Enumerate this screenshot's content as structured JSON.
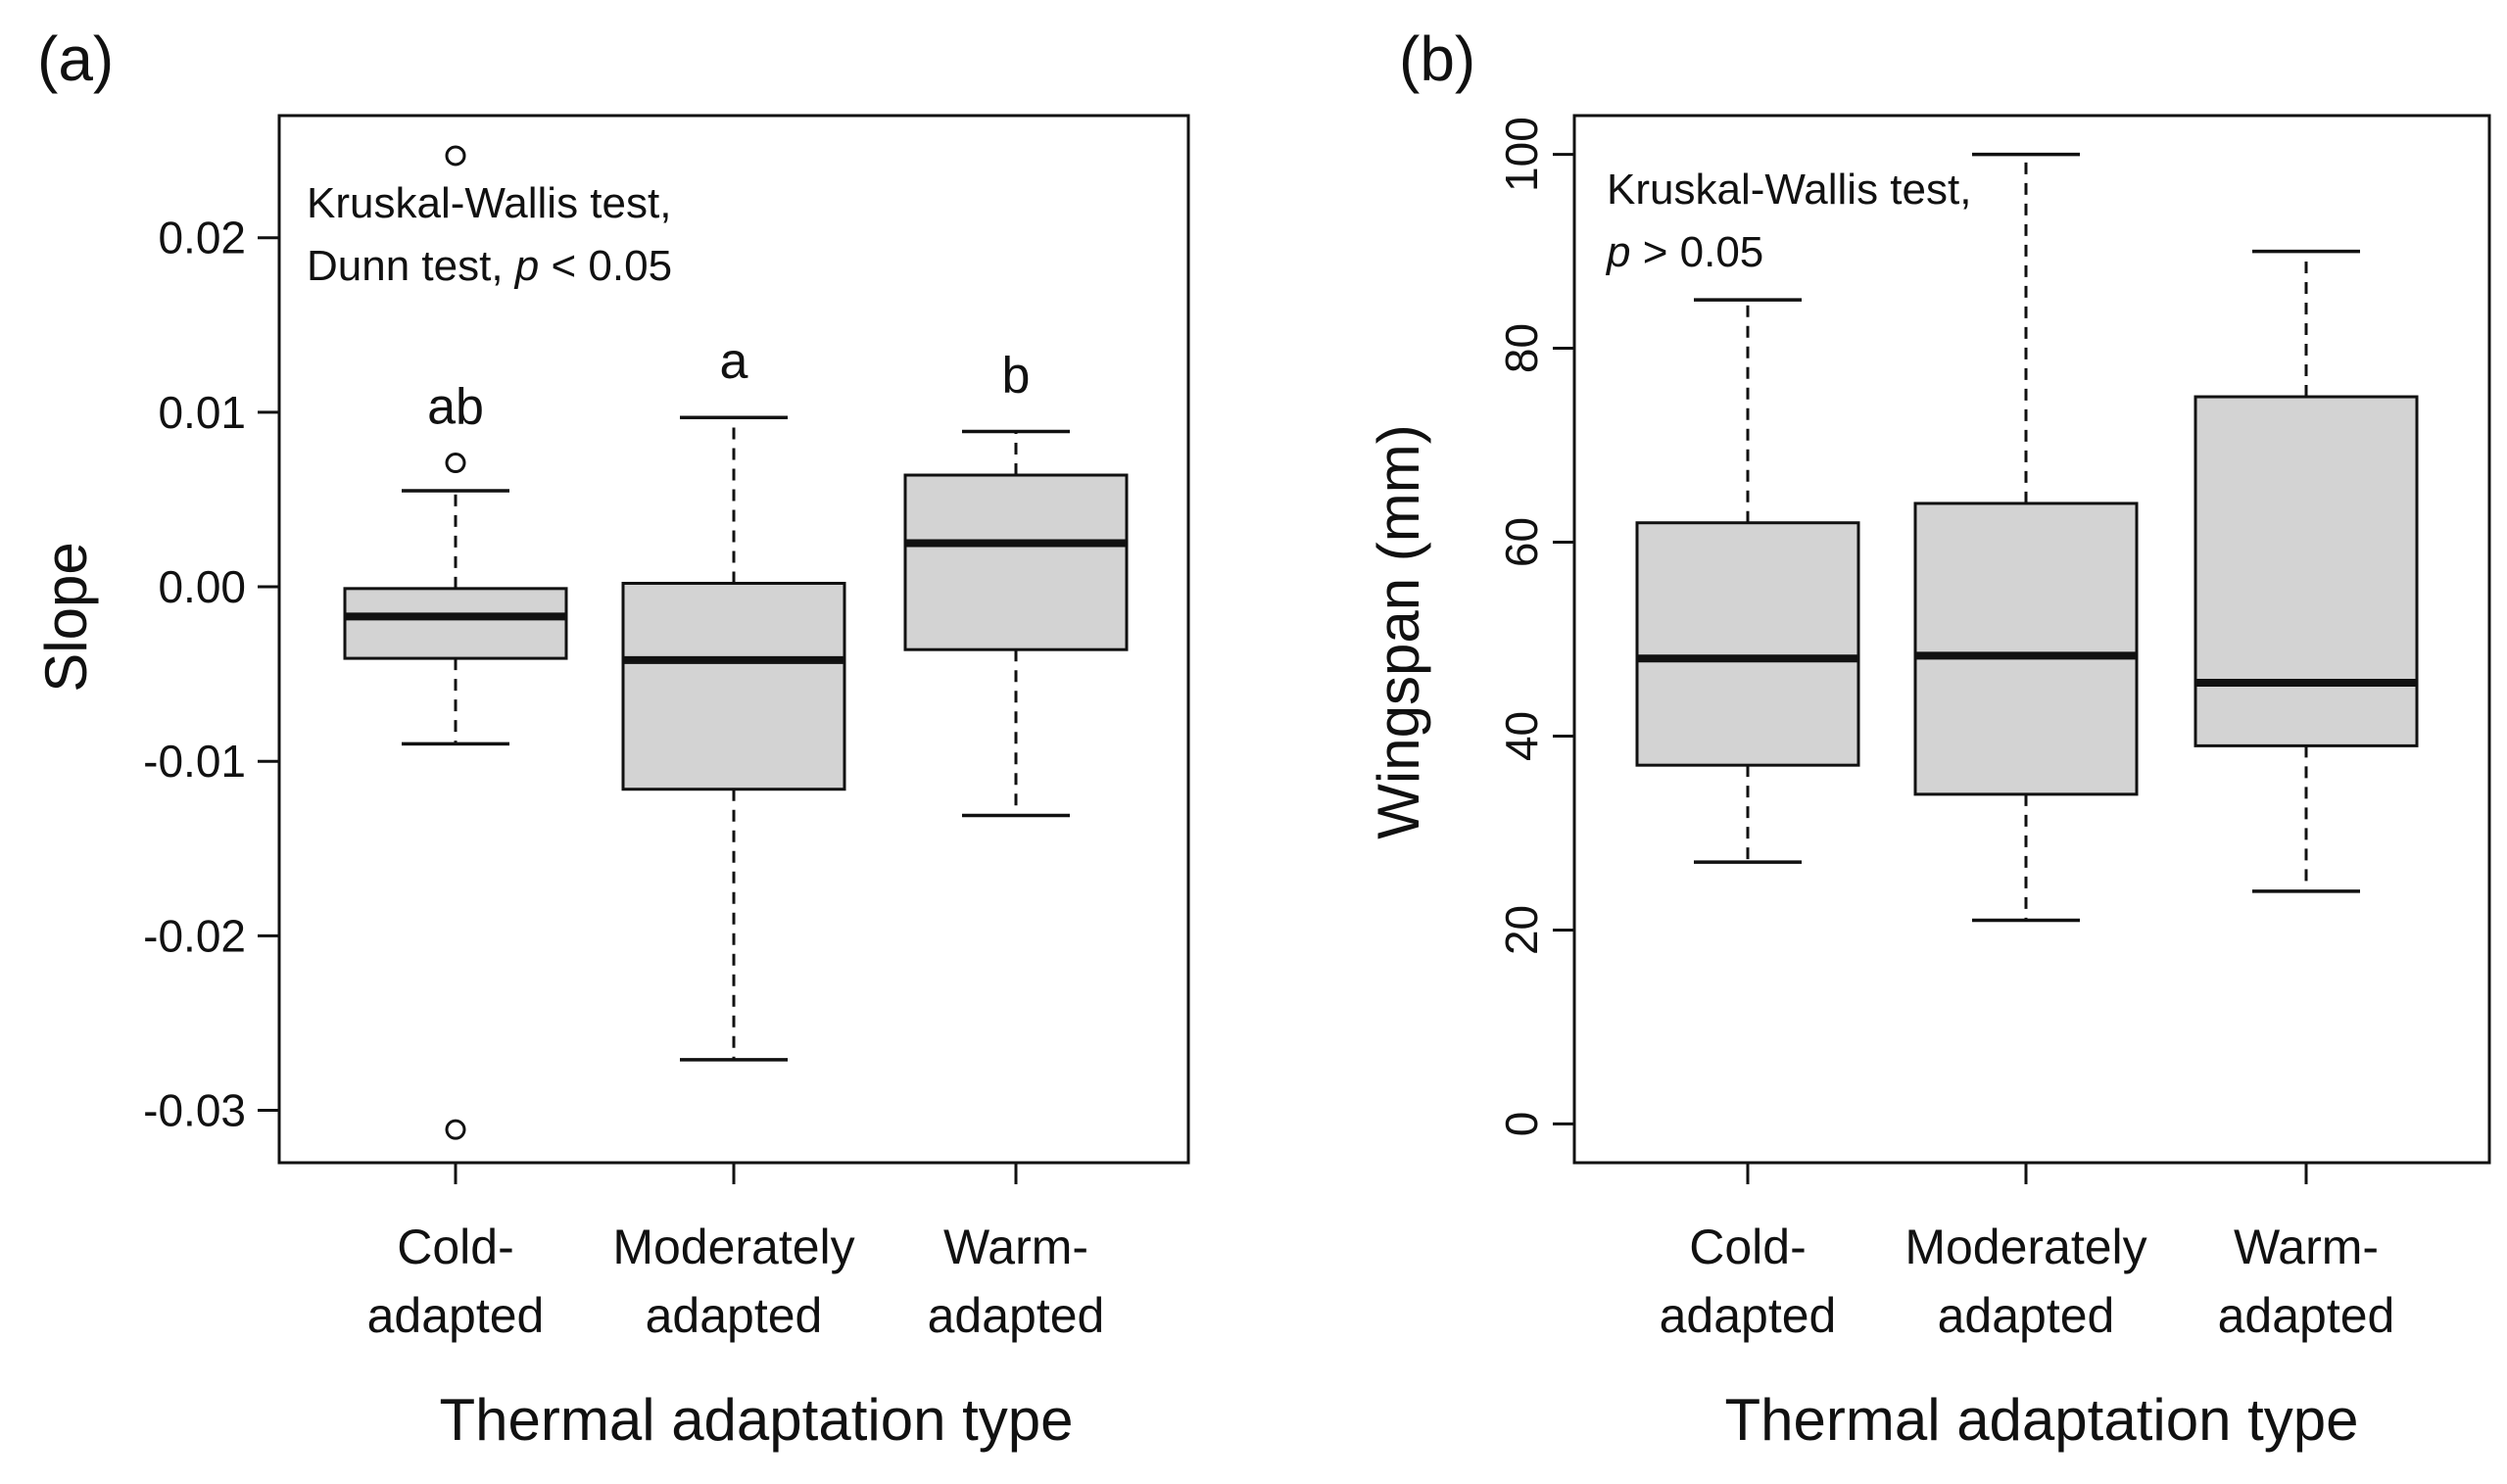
{
  "chart_data": [
    {
      "type": "boxplot",
      "panel_label": "(a)",
      "title": "",
      "xlabel": "Thermal adaptation type",
      "ylabel": "Slope",
      "ylim": [
        -0.033,
        0.027
      ],
      "yticks": [
        -0.03,
        -0.02,
        -0.01,
        0.0,
        0.01,
        0.02
      ],
      "ytick_labels": [
        "-0.03",
        "-0.02",
        "-0.01",
        "0.00",
        "0.01",
        "0.02"
      ],
      "tick_label_orientation": "horizontal",
      "categories": [
        {
          "line1": "Cold-",
          "line2": "adapted"
        },
        {
          "line1": "Moderately",
          "line2": "adapted"
        },
        {
          "line1": "Warm-",
          "line2": "adapted"
        }
      ],
      "boxes": [
        {
          "whisker_low": -0.009,
          "q1": -0.0041,
          "median": -0.0017,
          "q3": -0.0001,
          "whisker_high": 0.0055,
          "outliers": [
            0.0247,
            0.0071,
            -0.0311
          ]
        },
        {
          "whisker_low": -0.0271,
          "q1": -0.0116,
          "median": -0.0042,
          "q3": 0.0002,
          "whisker_high": 0.0097,
          "outliers": []
        },
        {
          "whisker_low": -0.0131,
          "q1": -0.0036,
          "median": 0.0025,
          "q3": 0.0064,
          "whisker_high": 0.0089,
          "outliers": []
        }
      ],
      "group_letters": [
        "ab",
        "a",
        "b"
      ],
      "annotation": {
        "line1": "Kruskal-Wallis test,",
        "line2_prefix": "Dunn test, ",
        "line2_p": "p",
        "line2_suffix": " < 0.05"
      },
      "box_fill": "#d3d3d3",
      "line_color": "#111111"
    },
    {
      "type": "boxplot",
      "panel_label": "(b)",
      "title": "",
      "xlabel": "Thermal adaptation type",
      "ylabel": "Wingspan (mm)",
      "ylim": [
        -4,
        104
      ],
      "yticks": [
        0,
        20,
        40,
        60,
        80,
        100
      ],
      "ytick_labels": [
        "0",
        "20",
        "40",
        "60",
        "80",
        "100"
      ],
      "tick_label_orientation": "rotated",
      "categories": [
        {
          "line1": "Cold-",
          "line2": "adapted"
        },
        {
          "line1": "Moderately",
          "line2": "adapted"
        },
        {
          "line1": "Warm-",
          "line2": "adapted"
        }
      ],
      "boxes": [
        {
          "whisker_low": 27,
          "q1": 37,
          "median": 48,
          "q3": 62,
          "whisker_high": 85,
          "outliers": []
        },
        {
          "whisker_low": 21,
          "q1": 34,
          "median": 48.3,
          "q3": 64,
          "whisker_high": 100,
          "outliers": []
        },
        {
          "whisker_low": 24,
          "q1": 39,
          "median": 45.5,
          "q3": 75,
          "whisker_high": 90,
          "outliers": []
        }
      ],
      "group_letters": [],
      "annotation": {
        "line1": "Kruskal-Wallis test,",
        "line2_prefix": "",
        "line2_p": "p",
        "line2_suffix": " > 0.05"
      },
      "box_fill": "#d3d3d3",
      "line_color": "#111111"
    }
  ]
}
